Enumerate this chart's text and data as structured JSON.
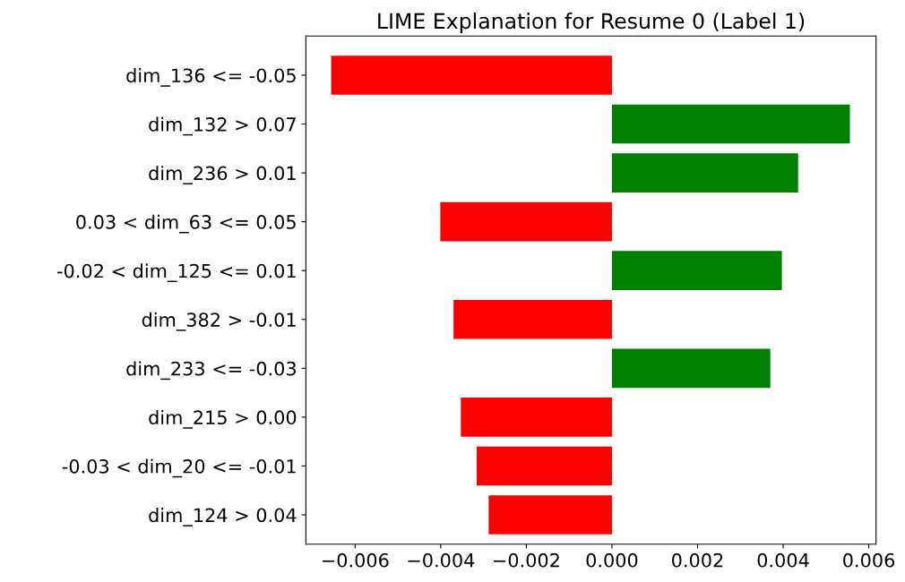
{
  "chart_data": {
    "type": "bar",
    "orientation": "horizontal",
    "title": "LIME Explanation for Resume 0 (Label 1)",
    "categories": [
      "dim_136 <= -0.05",
      "dim_132 > 0.07",
      "dim_236 > 0.01",
      "0.03 < dim_63 <= 0.05",
      "-0.02 < dim_125 <= 0.01",
      "dim_382 > -0.01",
      "dim_233 <= -0.03",
      "dim_215 > 0.00",
      "-0.03 < dim_20 <= -0.01",
      "dim_124 > 0.04"
    ],
    "values": [
      -0.00656,
      0.00556,
      0.00435,
      -0.00401,
      0.00397,
      -0.0037,
      0.0037,
      -0.00353,
      -0.00316,
      -0.00288
    ],
    "colors": [
      "#ff0000",
      "#008000",
      "#008000",
      "#ff0000",
      "#008000",
      "#ff0000",
      "#008000",
      "#ff0000",
      "#ff0000",
      "#ff0000"
    ],
    "xlim": [
      -0.00715,
      0.00617
    ],
    "xticks": [
      {
        "value": -0.006,
        "label": "−0.006"
      },
      {
        "value": -0.004,
        "label": "−0.004"
      },
      {
        "value": -0.002,
        "label": "−0.002"
      },
      {
        "value": 0.0,
        "label": "0.000"
      },
      {
        "value": 0.002,
        "label": "0.002"
      },
      {
        "value": 0.004,
        "label": "0.004"
      },
      {
        "value": 0.006,
        "label": "0.006"
      }
    ],
    "grid": false,
    "legend": false
  }
}
